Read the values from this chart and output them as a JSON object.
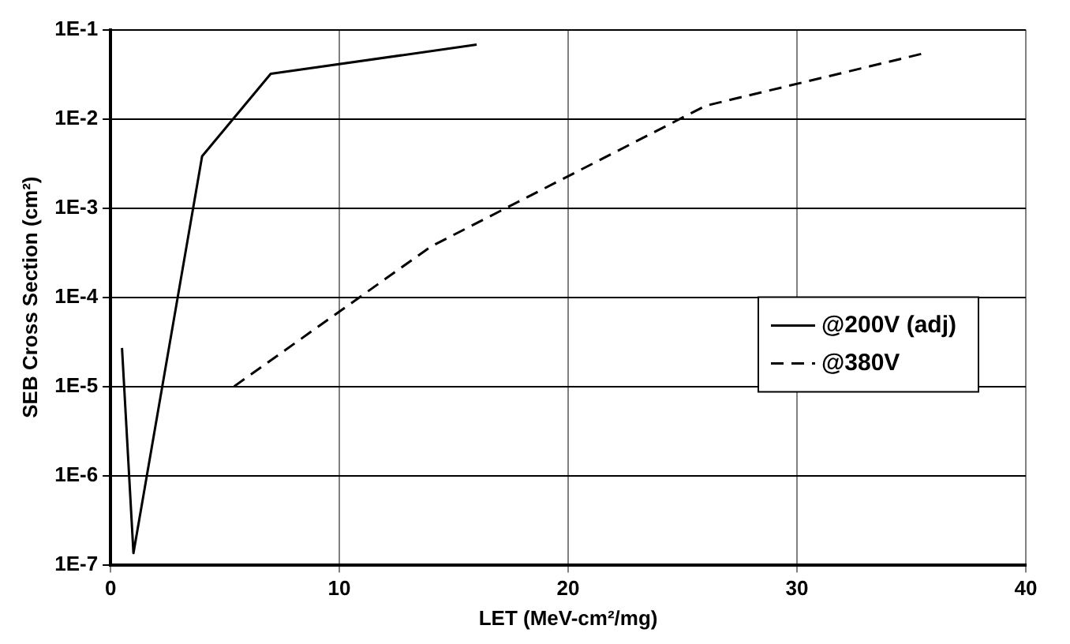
{
  "chart_data": {
    "type": "line",
    "xlabel": "LET (MeV-cm²/mg)",
    "ylabel": "SEB Cross Section (cm²)",
    "log": "y",
    "grid": true,
    "legend": "right",
    "marker": "none",
    "xlim": [
      0,
      40
    ],
    "xticks": [
      0,
      10,
      20,
      30,
      40
    ],
    "ylim": [
      1e-07,
      0.1
    ],
    "yticks": [
      {
        "value": 1e-07,
        "label": "1E-7"
      },
      {
        "value": 1e-06,
        "label": "1E-6"
      },
      {
        "value": 1e-05,
        "label": "1E-5"
      },
      {
        "value": 0.0001,
        "label": "1E-4"
      },
      {
        "value": 0.001,
        "label": "1E-3"
      },
      {
        "value": 0.01,
        "label": "1E-2"
      },
      {
        "value": 0.1,
        "label": "1E-1"
      }
    ],
    "series": [
      {
        "name": "@200V (adj)",
        "color": "#000000",
        "line_style": "solid",
        "x": [
          0.5,
          1,
          4,
          7,
          16
        ],
        "values": [
          2.7e-05,
          1.35e-07,
          0.0038,
          0.032,
          0.068
        ]
      },
      {
        "name": "@380V",
        "color": "#000000",
        "line_style": "dashed",
        "x": [
          5.4,
          14,
          26,
          35.5
        ],
        "values": [
          1e-05,
          0.00037,
          0.014,
          0.054
        ]
      }
    ]
  }
}
